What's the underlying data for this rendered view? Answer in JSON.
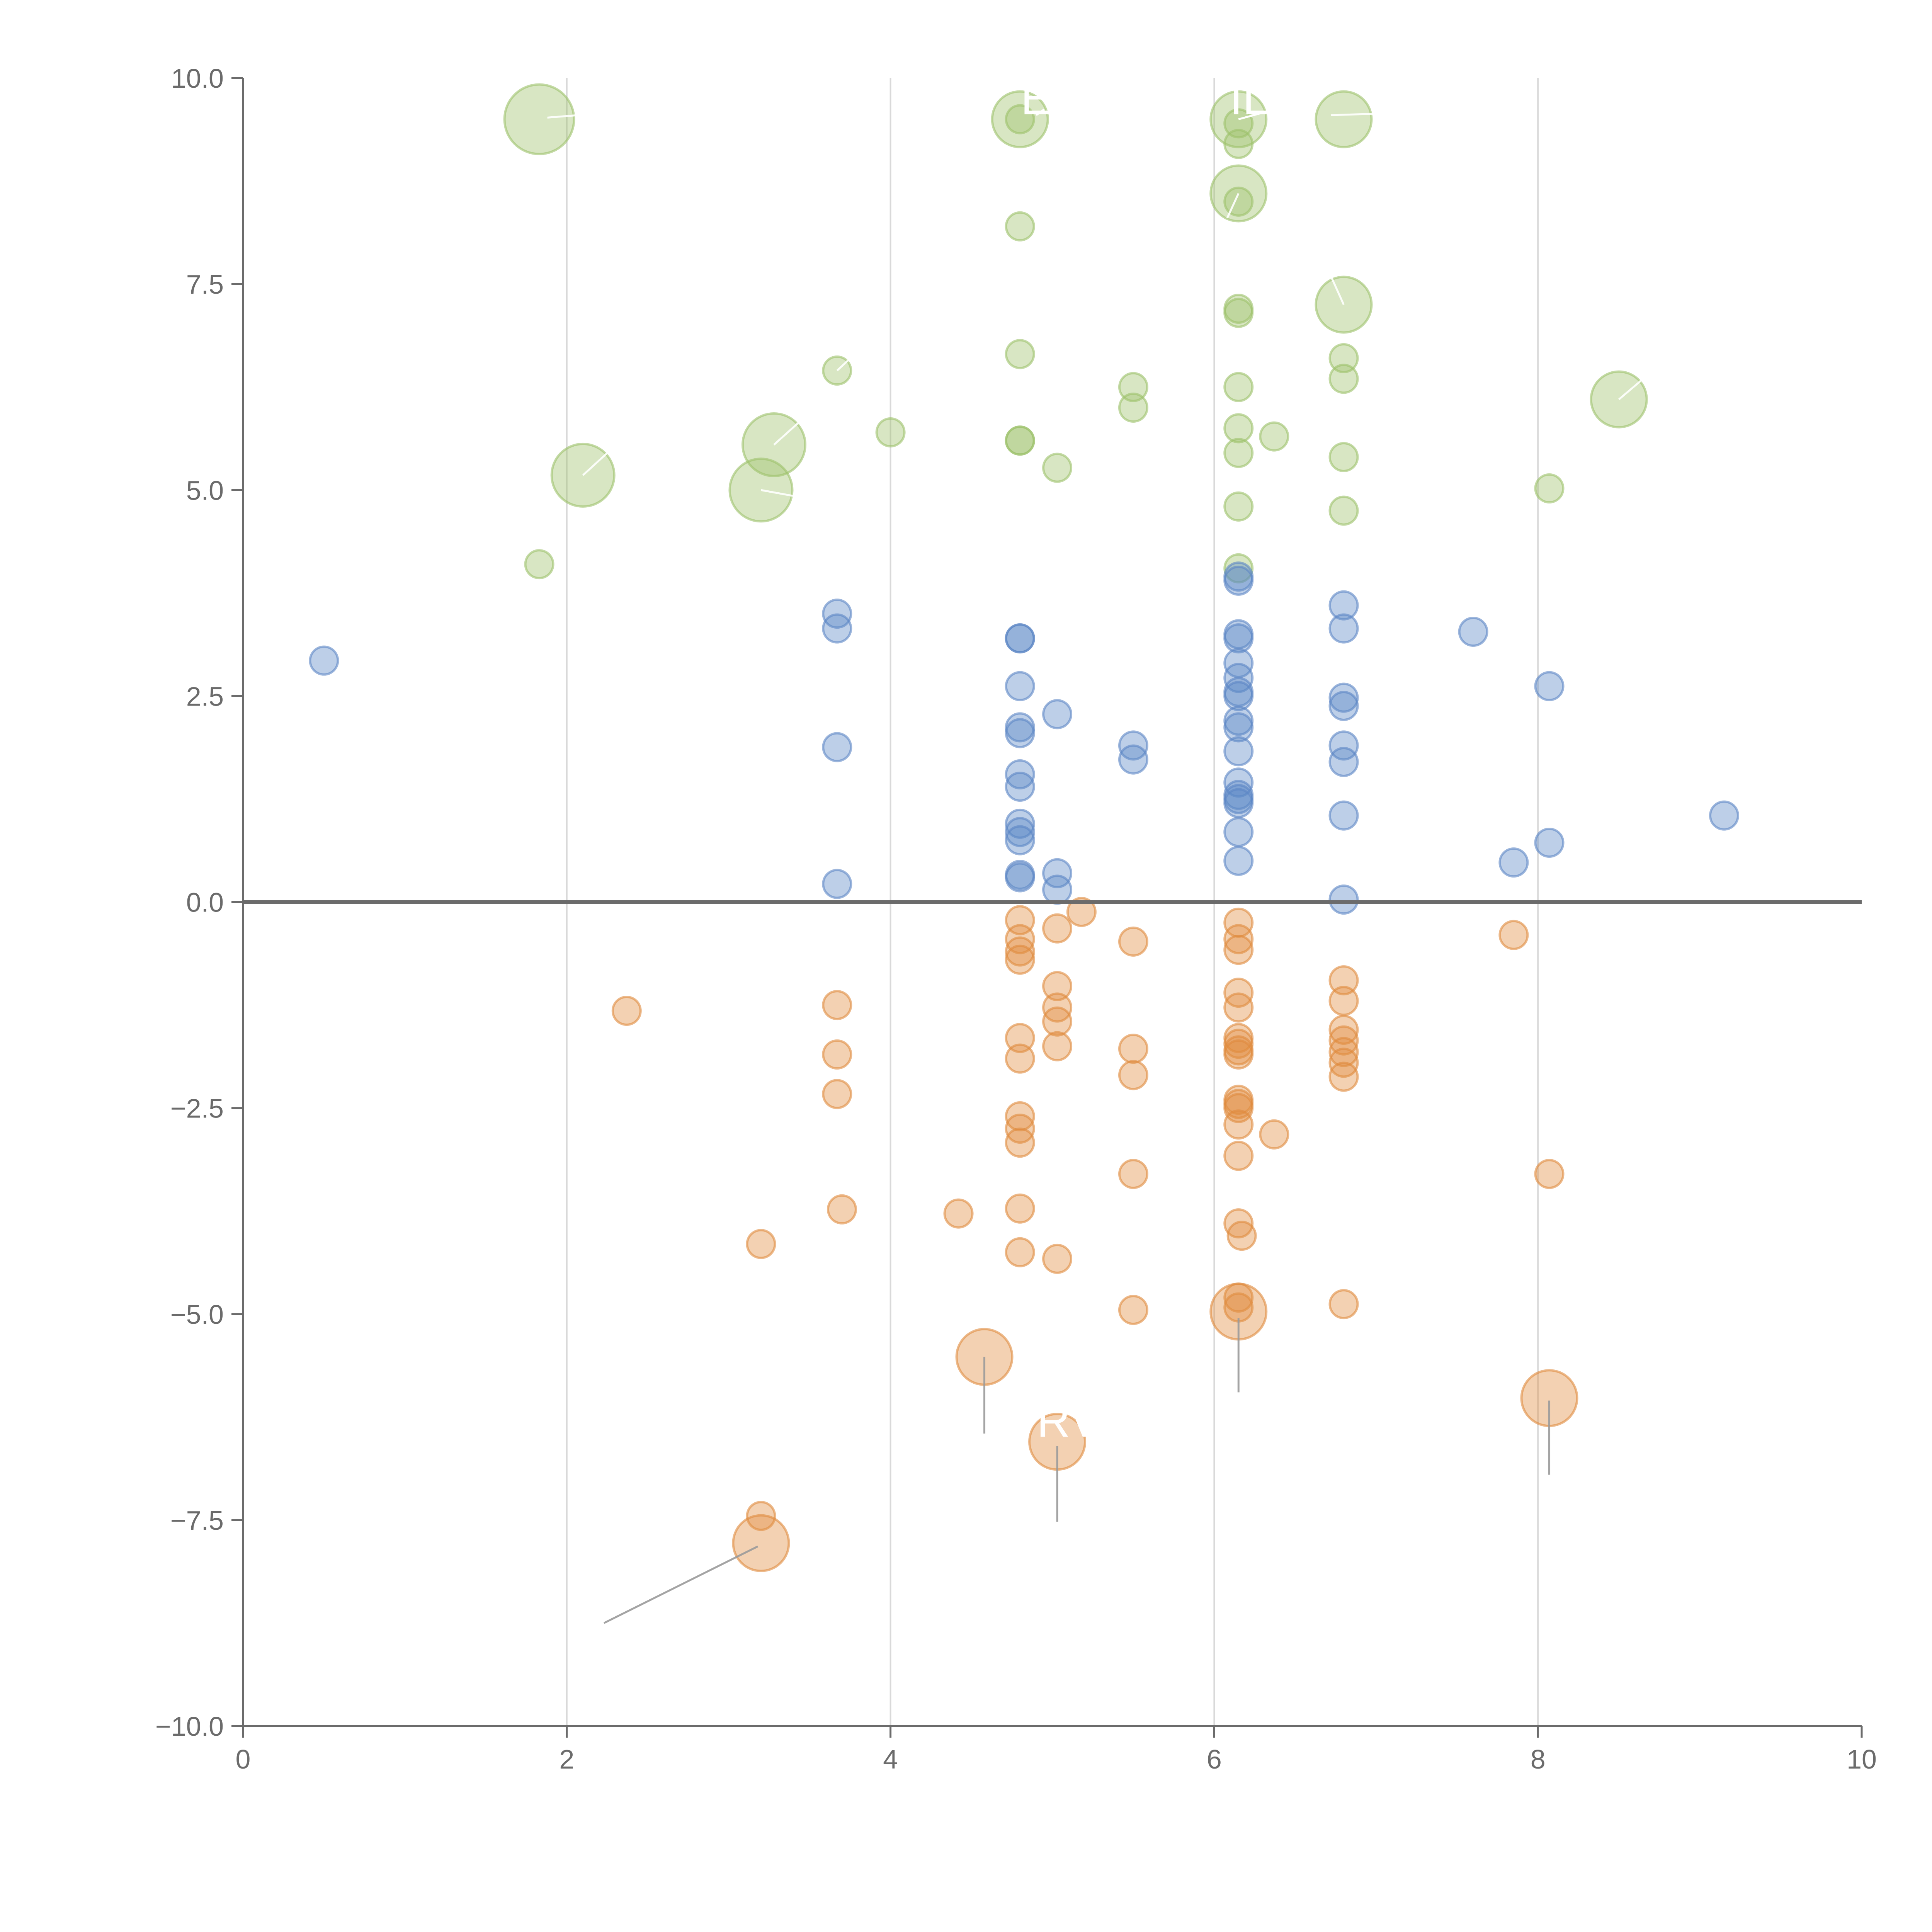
{
  "chart_data": {
    "type": "scatter",
    "title": "",
    "xlabel": "",
    "ylabel": "",
    "xlim": [
      0,
      10
    ],
    "ylim": [
      -10,
      10
    ],
    "x_ticks": [
      0,
      2,
      4,
      6,
      8,
      10
    ],
    "x_tick_labels": [
      "0",
      "2",
      "4",
      "6",
      "8",
      "10"
    ],
    "y_ticks": [
      10,
      7.5,
      5,
      2.5,
      0,
      -2.5,
      -5,
      -7.5,
      -10
    ],
    "y_tick_labels": [
      "10.0",
      "7.5",
      "5.0",
      "2.5",
      "0.0",
      "−2.5",
      "−5.0",
      "−7.5",
      "−10.0"
    ],
    "vertical_gridlines_at": [
      2,
      4,
      6,
      8
    ],
    "zero_line": true,
    "colors": {
      "green": "#9dc16a",
      "blue": "#5b86c5",
      "orange": "#e08b3e",
      "grid": "#d9d9d9",
      "axis": "#6b6b6b",
      "leader_dark": "#9a9a9a",
      "leader_light": "#ffffff"
    },
    "series": [
      {
        "name": "green",
        "color": "#9dc16a",
        "points": [
          [
            1.83,
            9.5,
            2
          ],
          [
            4.8,
            9.5,
            1.6
          ],
          [
            4.8,
            9.5,
            0.8
          ],
          [
            6.15,
            9.5,
            1.6
          ],
          [
            6.15,
            9.45,
            0.8
          ],
          [
            6.15,
            9.2,
            0.8
          ],
          [
            6.8,
            9.5,
            1.6
          ],
          [
            6.15,
            8.6,
            1.6
          ],
          [
            6.15,
            8.5,
            0.8
          ],
          [
            4.8,
            8.2,
            0.8
          ],
          [
            6.8,
            7.25,
            1.6
          ],
          [
            6.15,
            7.2,
            0.8
          ],
          [
            6.15,
            7.15,
            0.8
          ],
          [
            4.8,
            6.65,
            0.8
          ],
          [
            6.8,
            6.6,
            0.8
          ],
          [
            3.67,
            6.45,
            0.8
          ],
          [
            6.8,
            6.35,
            0.8
          ],
          [
            5.5,
            6.25,
            0.8
          ],
          [
            6.15,
            6.25,
            0.8
          ],
          [
            8.5,
            6.1,
            1.6
          ],
          [
            5.5,
            6.0,
            0.8
          ],
          [
            4.0,
            5.7,
            0.8
          ],
          [
            6.15,
            5.75,
            0.8
          ],
          [
            6.37,
            5.65,
            0.8
          ],
          [
            4.8,
            5.6,
            0.8
          ],
          [
            4.8,
            5.6,
            0.8
          ],
          [
            3.28,
            5.55,
            1.8
          ],
          [
            6.15,
            5.45,
            0.8
          ],
          [
            6.8,
            5.4,
            0.8
          ],
          [
            5.03,
            5.27,
            0.8
          ],
          [
            2.1,
            5.18,
            1.8
          ],
          [
            3.2,
            5.0,
            1.8
          ],
          [
            8.07,
            5.02,
            0.8
          ],
          [
            6.15,
            4.8,
            0.8
          ],
          [
            6.8,
            4.75,
            0.8
          ],
          [
            1.83,
            4.1,
            0.8
          ],
          [
            6.15,
            4.05,
            0.8
          ]
        ]
      },
      {
        "name": "blue",
        "color": "#5b86c5",
        "points": [
          [
            6.15,
            3.95,
            0.8
          ],
          [
            6.15,
            3.9,
            0.8
          ],
          [
            3.67,
            3.5,
            0.8
          ],
          [
            6.8,
            3.6,
            0.8
          ],
          [
            3.67,
            3.32,
            0.8
          ],
          [
            6.8,
            3.32,
            0.8
          ],
          [
            7.6,
            3.28,
            0.8
          ],
          [
            4.8,
            3.2,
            0.8
          ],
          [
            4.8,
            3.2,
            0.8
          ],
          [
            6.15,
            3.25,
            0.8
          ],
          [
            6.15,
            3.2,
            0.8
          ],
          [
            6.15,
            2.9,
            0.8
          ],
          [
            0.5,
            2.93,
            0.8
          ],
          [
            6.15,
            2.72,
            0.8
          ],
          [
            8.07,
            2.62,
            0.8
          ],
          [
            4.8,
            2.62,
            0.8
          ],
          [
            6.15,
            2.55,
            0.8
          ],
          [
            6.15,
            2.5,
            0.8
          ],
          [
            6.8,
            2.48,
            0.8
          ],
          [
            6.8,
            2.38,
            0.8
          ],
          [
            5.03,
            2.28,
            0.8
          ],
          [
            6.15,
            2.2,
            0.8
          ],
          [
            6.15,
            2.12,
            0.8
          ],
          [
            4.8,
            2.12,
            0.8
          ],
          [
            4.8,
            2.05,
            0.8
          ],
          [
            3.67,
            1.88,
            0.8
          ],
          [
            5.5,
            1.9,
            0.8
          ],
          [
            6.8,
            1.9,
            0.8
          ],
          [
            6.15,
            1.83,
            0.8
          ],
          [
            5.5,
            1.73,
            0.8
          ],
          [
            6.8,
            1.7,
            0.8
          ],
          [
            4.8,
            1.55,
            0.8
          ],
          [
            6.15,
            1.45,
            0.8
          ],
          [
            4.8,
            1.4,
            0.8
          ],
          [
            6.15,
            1.3,
            0.8
          ],
          [
            6.15,
            1.25,
            0.8
          ],
          [
            6.15,
            1.2,
            0.8
          ],
          [
            9.15,
            1.05,
            0.8
          ],
          [
            6.8,
            1.05,
            0.8
          ],
          [
            4.8,
            0.95,
            0.8
          ],
          [
            6.15,
            0.85,
            0.8
          ],
          [
            4.8,
            0.85,
            0.8
          ],
          [
            4.8,
            0.75,
            0.8
          ],
          [
            8.07,
            0.72,
            0.8
          ],
          [
            6.15,
            0.5,
            0.8
          ],
          [
            7.85,
            0.48,
            0.8
          ],
          [
            5.03,
            0.35,
            0.8
          ],
          [
            4.8,
            0.33,
            0.8
          ],
          [
            4.8,
            0.3,
            0.8
          ],
          [
            3.67,
            0.22,
            0.8
          ],
          [
            5.03,
            0.15,
            0.8
          ],
          [
            6.8,
            0.03,
            0.8
          ]
        ]
      },
      {
        "name": "orange",
        "color": "#e08b3e",
        "points": [
          [
            5.18,
            -0.12,
            0.8
          ],
          [
            4.8,
            -0.22,
            0.8
          ],
          [
            6.15,
            -0.25,
            0.8
          ],
          [
            5.03,
            -0.32,
            0.8
          ],
          [
            7.85,
            -0.4,
            0.8
          ],
          [
            6.15,
            -0.45,
            0.8
          ],
          [
            5.5,
            -0.48,
            0.8
          ],
          [
            4.8,
            -0.45,
            0.8
          ],
          [
            6.15,
            -0.58,
            0.8
          ],
          [
            4.8,
            -0.6,
            0.8
          ],
          [
            4.8,
            -0.7,
            0.8
          ],
          [
            6.8,
            -0.95,
            0.8
          ],
          [
            5.03,
            -1.02,
            0.8
          ],
          [
            6.15,
            -1.1,
            0.8
          ],
          [
            3.67,
            -1.25,
            0.8
          ],
          [
            6.8,
            -1.2,
            0.8
          ],
          [
            6.15,
            -1.28,
            0.8
          ],
          [
            5.03,
            -1.28,
            0.8
          ],
          [
            2.37,
            -1.32,
            0.8
          ],
          [
            5.03,
            -1.45,
            0.8
          ],
          [
            6.8,
            -1.55,
            0.8
          ],
          [
            4.8,
            -1.65,
            0.8
          ],
          [
            6.15,
            -1.65,
            0.8
          ],
          [
            6.8,
            -1.68,
            0.8
          ],
          [
            6.15,
            -1.72,
            0.8
          ],
          [
            5.03,
            -1.75,
            0.8
          ],
          [
            6.15,
            -1.8,
            0.8
          ],
          [
            5.5,
            -1.78,
            0.8
          ],
          [
            6.8,
            -1.82,
            0.8
          ],
          [
            3.67,
            -1.85,
            0.8
          ],
          [
            6.15,
            -1.85,
            0.8
          ],
          [
            4.8,
            -1.9,
            0.8
          ],
          [
            6.8,
            -1.95,
            0.8
          ],
          [
            5.5,
            -2.1,
            0.8
          ],
          [
            6.8,
            -2.12,
            0.8
          ],
          [
            3.67,
            -2.33,
            0.8
          ],
          [
            6.15,
            -2.4,
            0.8
          ],
          [
            6.15,
            -2.45,
            0.8
          ],
          [
            6.15,
            -2.5,
            0.8
          ],
          [
            4.8,
            -2.6,
            0.8
          ],
          [
            6.15,
            -2.7,
            0.8
          ],
          [
            4.8,
            -2.75,
            0.8
          ],
          [
            6.37,
            -2.82,
            0.8
          ],
          [
            4.8,
            -2.92,
            0.8
          ],
          [
            6.15,
            -3.08,
            0.8
          ],
          [
            5.5,
            -3.3,
            0.8
          ],
          [
            8.07,
            -3.3,
            0.8
          ],
          [
            4.8,
            -3.72,
            0.8
          ],
          [
            3.7,
            -3.73,
            0.8
          ],
          [
            4.42,
            -3.78,
            0.8
          ],
          [
            6.15,
            -3.9,
            0.8
          ],
          [
            6.17,
            -4.05,
            0.8
          ],
          [
            3.2,
            -4.15,
            0.8
          ],
          [
            4.8,
            -4.25,
            0.8
          ],
          [
            5.03,
            -4.33,
            0.8
          ],
          [
            6.15,
            -4.8,
            0.8
          ],
          [
            6.8,
            -4.88,
            0.8
          ],
          [
            6.15,
            -4.92,
            0.8
          ],
          [
            5.5,
            -4.95,
            0.8
          ],
          [
            6.15,
            -4.97,
            1.6
          ],
          [
            4.58,
            -5.52,
            1.6
          ],
          [
            8.07,
            -6.02,
            1.6
          ],
          [
            5.03,
            -6.55,
            1.6
          ],
          [
            3.2,
            -7.45,
            0.8
          ],
          [
            3.2,
            -7.78,
            1.6
          ]
        ]
      }
    ],
    "annotations": [
      {
        "text": "E",
        "at": [
          4.9,
          9.75
        ],
        "color": "#ffffff",
        "leader": [
          [
            4.9,
            9.55
          ],
          [
            4.95,
            9.62
          ]
        ]
      },
      {
        "text": "ILV",
        "at": [
          6.3,
          9.75
        ],
        "color": "#ffffff",
        "leader": [
          [
            6.15,
            9.5
          ],
          [
            6.3,
            9.58
          ]
        ]
      },
      {
        "text": "RV",
        "at": [
          5.1,
          -6.3
        ],
        "color": "#ffffff",
        "leader": null
      }
    ],
    "leader_lines": [
      {
        "from": [
          1.88,
          9.52
        ],
        "to": [
          2.07,
          9.55
        ],
        "color": "#ffffff"
      },
      {
        "from": [
          6.72,
          9.55
        ],
        "to": [
          7.05,
          9.57
        ],
        "color": "#ffffff"
      },
      {
        "from": [
          6.15,
          8.6
        ],
        "to": [
          6.08,
          8.3
        ],
        "color": "#ffffff"
      },
      {
        "from": [
          6.8,
          7.25
        ],
        "to": [
          6.72,
          7.6
        ],
        "color": "#ffffff"
      },
      {
        "from": [
          3.67,
          6.45
        ],
        "to": [
          3.78,
          6.65
        ],
        "color": "#ffffff"
      },
      {
        "from": [
          3.28,
          5.55
        ],
        "to": [
          3.45,
          5.85
        ],
        "color": "#ffffff"
      },
      {
        "from": [
          2.1,
          5.18
        ],
        "to": [
          2.25,
          5.45
        ],
        "color": "#ffffff"
      },
      {
        "from": [
          3.2,
          5.0
        ],
        "to": [
          3.48,
          4.9
        ],
        "color": "#ffffff"
      },
      {
        "from": [
          8.5,
          6.1
        ],
        "to": [
          8.65,
          6.35
        ],
        "color": "#ffffff"
      },
      {
        "from": [
          4.58,
          -5.52
        ],
        "to": [
          4.58,
          -6.45
        ],
        "color": "#9a9a9a"
      },
      {
        "from": [
          6.15,
          -5.05
        ],
        "to": [
          6.15,
          -5.95
        ],
        "color": "#9a9a9a"
      },
      {
        "from": [
          8.07,
          -6.05
        ],
        "to": [
          8.07,
          -6.95
        ],
        "color": "#9a9a9a"
      },
      {
        "from": [
          5.03,
          -6.6
        ],
        "to": [
          5.03,
          -7.52
        ],
        "color": "#9a9a9a"
      },
      {
        "from": [
          3.18,
          -7.82
        ],
        "to": [
          2.23,
          -8.75
        ],
        "color": "#9a9a9a"
      }
    ]
  }
}
